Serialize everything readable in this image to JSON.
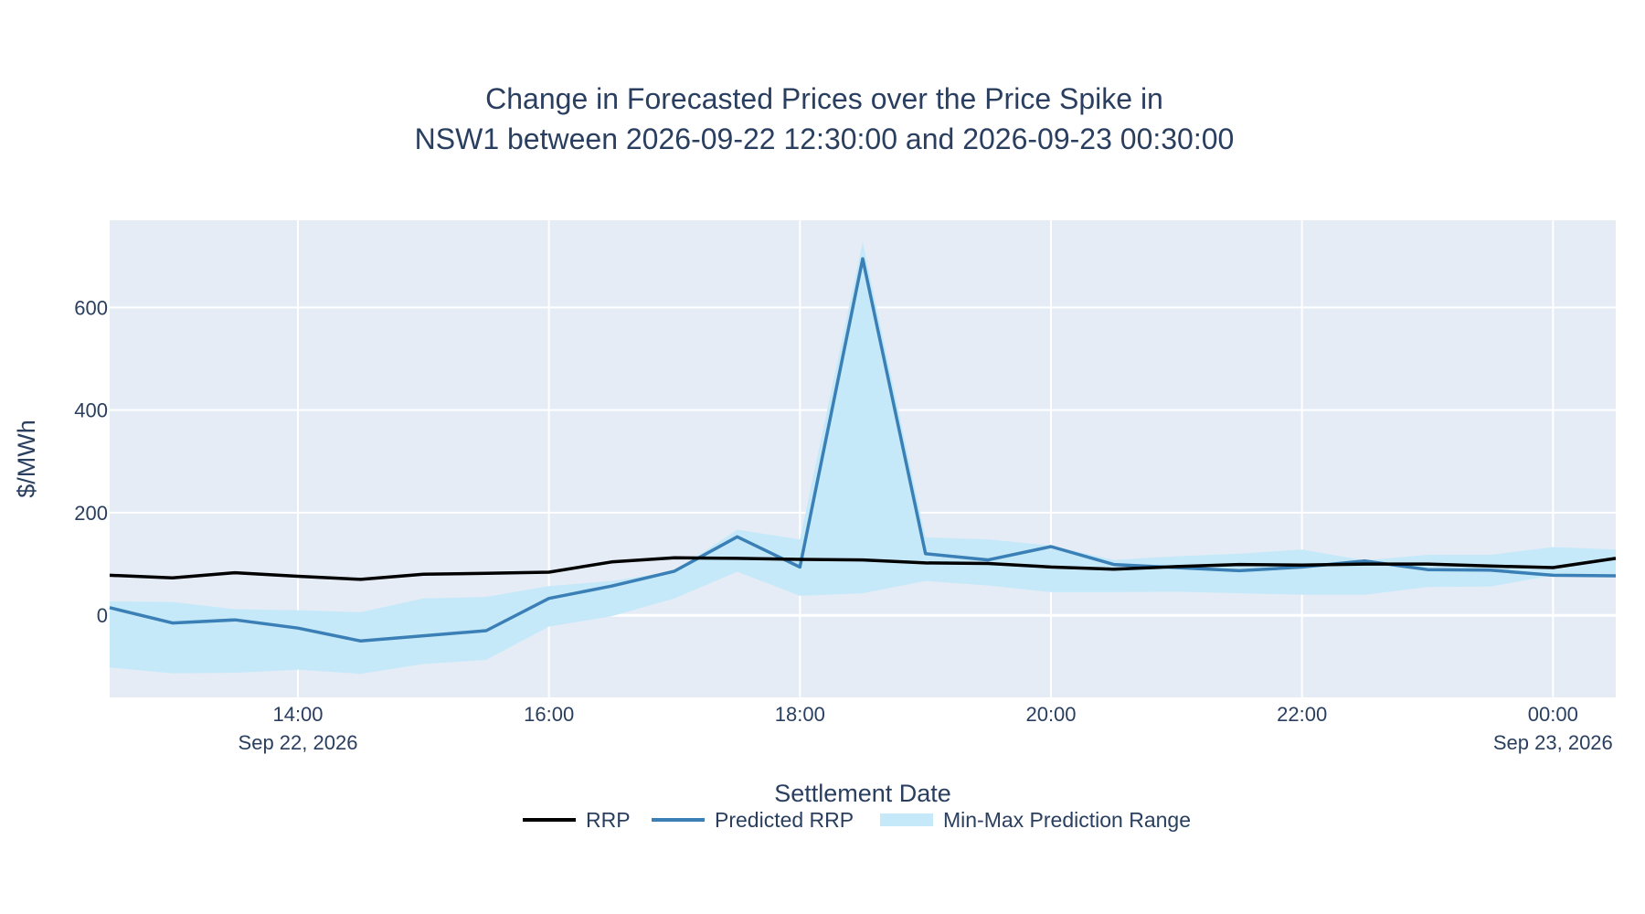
{
  "chart_data": {
    "type": "line",
    "title_lines": [
      "Change in Forecasted Prices over the Price Spike in",
      "NSW1 between 2026-09-22 12:30:00 and 2026-09-23 00:30:00"
    ],
    "xlabel": "Settlement Date",
    "ylabel": "$/MWh",
    "x": [
      "12:30",
      "13:00",
      "13:30",
      "14:00",
      "14:30",
      "15:00",
      "15:30",
      "16:00",
      "16:30",
      "17:00",
      "17:30",
      "18:00",
      "18:30",
      "19:00",
      "19:30",
      "20:00",
      "20:30",
      "21:00",
      "21:30",
      "22:00",
      "22:30",
      "23:00",
      "23:30",
      "00:00",
      "00:30"
    ],
    "x_range": [
      "2026-09-22 12:30",
      "2026-09-23 00:30"
    ],
    "ylim": [
      -160,
      770
    ],
    "y_ticks": [
      0,
      200,
      400,
      600
    ],
    "x_ticks": [
      {
        "label": "14:00",
        "sub": "Sep 22, 2026",
        "hours_after_start": 1.5
      },
      {
        "label": "16:00",
        "sub": "",
        "hours_after_start": 3.5
      },
      {
        "label": "18:00",
        "sub": "",
        "hours_after_start": 5.5
      },
      {
        "label": "20:00",
        "sub": "",
        "hours_after_start": 7.5
      },
      {
        "label": "22:00",
        "sub": "",
        "hours_after_start": 9.5
      },
      {
        "label": "00:00",
        "sub": "Sep 23, 2026",
        "hours_after_start": 11.5
      }
    ],
    "series": [
      {
        "name": "RRP",
        "color": "#000000",
        "values": [
          78,
          73,
          83,
          76,
          70,
          80,
          82,
          84,
          104,
          112,
          111,
          109,
          108,
          102,
          101,
          94,
          90,
          95,
          99,
          98,
          100,
          100,
          96,
          93,
          111
        ]
      },
      {
        "name": "Predicted RRP",
        "color": "#3a7fb5",
        "values": [
          15,
          -15,
          -9,
          -25,
          -50,
          -40,
          -30,
          33,
          57,
          86,
          153,
          94,
          695,
          120,
          108,
          134,
          99,
          93,
          87,
          94,
          106,
          89,
          88,
          78,
          77
        ]
      }
    ],
    "range_band": {
      "name": "Min-Max Prediction Range",
      "color": "#c6e9f9",
      "min": [
        -102,
        -113,
        -112,
        -106,
        -114,
        -95,
        -87,
        -22,
        -2,
        33,
        85,
        38,
        43,
        67,
        58,
        45,
        45,
        46,
        43,
        40,
        40,
        55,
        56,
        78,
        77
      ],
      "max": [
        27,
        26,
        12,
        10,
        6,
        33,
        36,
        57,
        67,
        86,
        167,
        148,
        728,
        152,
        148,
        136,
        108,
        115,
        120,
        128,
        107,
        118,
        118,
        133,
        128
      ]
    },
    "grid": true,
    "legend_position": "bottom-center"
  }
}
